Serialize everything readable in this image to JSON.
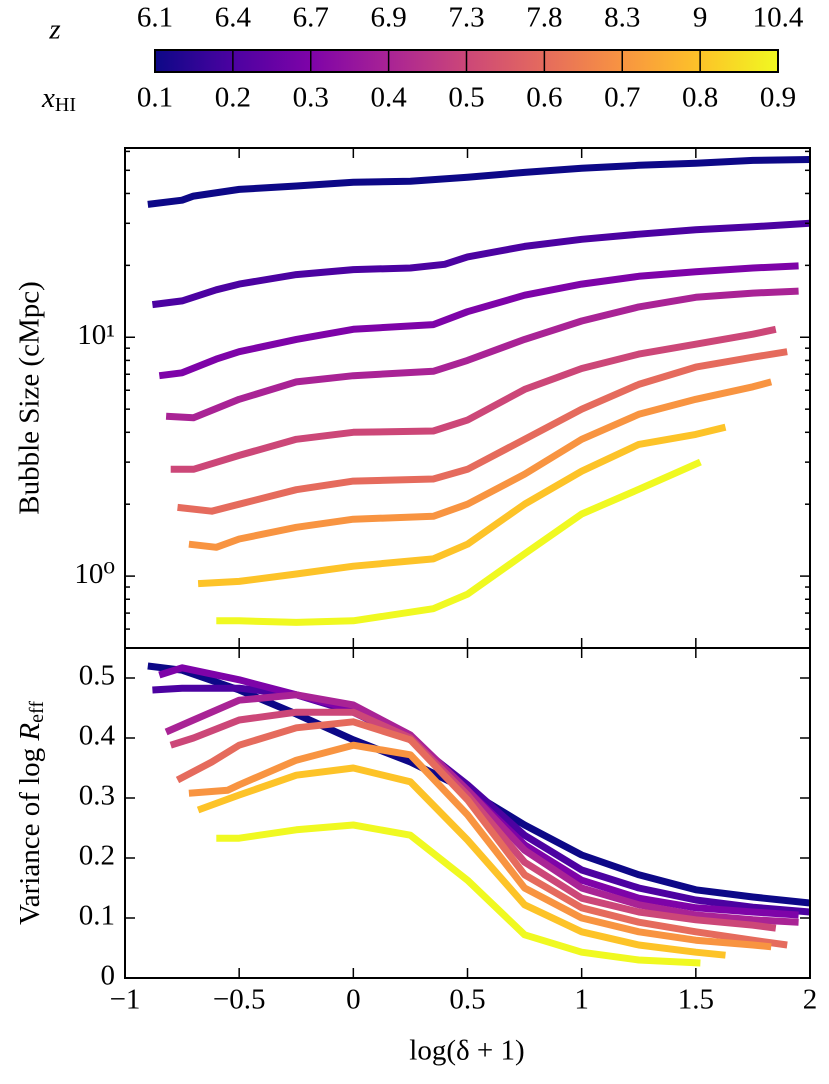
{
  "colorbar": {
    "z_label": "z",
    "z_ticks": [
      6.1,
      6.4,
      6.7,
      6.9,
      7.3,
      7.8,
      8.3,
      9,
      10.4
    ],
    "x_label": "x",
    "x_label_sub": "HI",
    "x_ticks": [
      0.1,
      0.2,
      0.3,
      0.4,
      0.5,
      0.6,
      0.7,
      0.8,
      0.9
    ],
    "lim": [
      0.1,
      0.9
    ]
  },
  "chart_data": [
    {
      "type": "line",
      "ylabel": "Bubble Size (cMpc)",
      "ylog": true,
      "ylim": [
        0.5,
        62
      ],
      "yticks": [
        {
          "value": 1,
          "label": "10⁰"
        },
        {
          "value": 10,
          "label": "10¹"
        }
      ],
      "yminor": [
        0.6,
        0.7,
        0.8,
        0.9,
        2,
        3,
        4,
        5,
        6,
        7,
        8,
        9,
        20,
        30,
        40,
        50,
        60
      ],
      "xlim": [
        -1,
        2
      ],
      "xticks": [
        -1,
        -0.5,
        0,
        0.5,
        1,
        1.5,
        2
      ],
      "show_xtick_labels": false,
      "series": [
        {
          "color": "#0d0887",
          "x": [
            -0.9,
            -0.75,
            -0.7,
            -0.5,
            -0.25,
            0,
            0.25,
            0.5,
            0.75,
            1,
            1.25,
            1.5,
            1.75,
            2
          ],
          "values": [
            36,
            37.5,
            39,
            41.6,
            43,
            44.6,
            45,
            46.8,
            49,
            51,
            52.5,
            53.5,
            55,
            55.5
          ]
        },
        {
          "color": "#4c02a1",
          "x": [
            -0.88,
            -0.75,
            -0.6,
            -0.5,
            -0.25,
            0,
            0.25,
            0.4,
            0.5,
            0.75,
            1,
            1.25,
            1.5,
            1.75,
            2
          ],
          "values": [
            13.7,
            14.2,
            15.8,
            16.7,
            18.3,
            19.2,
            19.5,
            20.2,
            21.7,
            24,
            25.7,
            27,
            28.2,
            29,
            30
          ]
        },
        {
          "color": "#7e03a8",
          "x": [
            -0.85,
            -0.75,
            -0.6,
            -0.5,
            -0.25,
            0,
            0.35,
            0.5,
            0.75,
            1,
            1.25,
            1.5,
            1.75,
            1.95
          ],
          "values": [
            6.9,
            7.1,
            8.1,
            8.7,
            9.8,
            10.8,
            11.3,
            12.8,
            15,
            16.7,
            18,
            18.8,
            19.5,
            19.9
          ]
        },
        {
          "color": "#a92395",
          "x": [
            -0.82,
            -0.7,
            -0.5,
            -0.25,
            0,
            0.35,
            0.5,
            0.75,
            1,
            1.25,
            1.5,
            1.75,
            1.95
          ],
          "values": [
            4.67,
            4.6,
            5.5,
            6.5,
            6.9,
            7.2,
            8,
            9.8,
            11.7,
            13.4,
            14.7,
            15.3,
            15.6
          ]
        },
        {
          "color": "#cc4778",
          "x": [
            -0.8,
            -0.7,
            -0.5,
            -0.25,
            0,
            0.35,
            0.5,
            0.75,
            1,
            1.25,
            1.5,
            1.75,
            1.85
          ],
          "values": [
            2.8,
            2.8,
            3.2,
            3.74,
            4.0,
            4.05,
            4.5,
            6.05,
            7.4,
            8.5,
            9.35,
            10.3,
            10.8
          ]
        },
        {
          "color": "#e56b5d",
          "x": [
            -0.77,
            -0.62,
            -0.5,
            -0.25,
            0,
            0.35,
            0.5,
            0.75,
            1,
            1.25,
            1.5,
            1.75,
            1.9
          ],
          "values": [
            1.94,
            1.87,
            2.0,
            2.3,
            2.5,
            2.55,
            2.8,
            3.74,
            5.0,
            6.35,
            7.5,
            8.25,
            8.7
          ]
        },
        {
          "color": "#f89441",
          "x": [
            -0.72,
            -0.6,
            -0.5,
            -0.25,
            0,
            0.35,
            0.5,
            0.75,
            1,
            1.25,
            1.5,
            1.75,
            1.83
          ],
          "values": [
            1.36,
            1.32,
            1.43,
            1.6,
            1.73,
            1.78,
            2.0,
            2.67,
            3.74,
            4.76,
            5.5,
            6.2,
            6.5
          ]
        },
        {
          "color": "#fdc328",
          "x": [
            -0.68,
            -0.5,
            -0.25,
            0,
            0.35,
            0.5,
            0.75,
            1,
            1.25,
            1.5,
            1.63
          ],
          "values": [
            0.93,
            0.95,
            1.02,
            1.1,
            1.18,
            1.36,
            2.0,
            2.75,
            3.56,
            3.92,
            4.2
          ]
        },
        {
          "color": "#f0f921",
          "x": [
            -0.6,
            -0.5,
            -0.25,
            0,
            0.35,
            0.5,
            0.75,
            1,
            1.25,
            1.52
          ],
          "values": [
            0.65,
            0.65,
            0.64,
            0.65,
            0.73,
            0.84,
            1.24,
            1.82,
            2.31,
            3.0
          ]
        }
      ]
    },
    {
      "type": "line",
      "ylabel": "Variance of log",
      "ylabel_var": "R",
      "ylabel_sub": "eff",
      "xlabel": "log(δ + 1)",
      "ylim": [
        0,
        0.55
      ],
      "yticks": [
        0,
        0.1,
        0.2,
        0.3,
        0.4,
        0.5
      ],
      "xlim": [
        -1,
        2
      ],
      "xticks": [
        {
          "value": -1,
          "label": "−1"
        },
        {
          "value": -0.5,
          "label": "−0.5"
        },
        0,
        0.5,
        1,
        1.5,
        2
      ],
      "series": [
        {
          "color": "#0d0887",
          "x": [
            -0.9,
            -0.75,
            -0.5,
            -0.25,
            0,
            0.25,
            0.5,
            0.75,
            1,
            1.25,
            1.5,
            1.75,
            2
          ],
          "values": [
            0.52,
            0.513,
            0.48,
            0.44,
            0.397,
            0.36,
            0.313,
            0.255,
            0.205,
            0.172,
            0.147,
            0.135,
            0.125
          ]
        },
        {
          "color": "#4c02a1",
          "x": [
            -0.88,
            -0.75,
            -0.5,
            -0.25,
            0,
            0.25,
            0.5,
            0.75,
            1,
            1.25,
            1.5,
            1.75,
            2
          ],
          "values": [
            0.48,
            0.483,
            0.483,
            0.472,
            0.443,
            0.397,
            0.322,
            0.238,
            0.18,
            0.15,
            0.13,
            0.118,
            0.11
          ]
        },
        {
          "color": "#7e03a8",
          "x": [
            -0.85,
            -0.75,
            -0.5,
            -0.25,
            0,
            0.25,
            0.5,
            0.75,
            1,
            1.25,
            1.5,
            1.75,
            1.95
          ],
          "values": [
            0.505,
            0.517,
            0.497,
            0.472,
            0.447,
            0.397,
            0.313,
            0.222,
            0.163,
            0.133,
            0.117,
            0.11,
            0.105
          ]
        },
        {
          "color": "#a92395",
          "x": [
            -0.82,
            -0.7,
            -0.5,
            -0.25,
            0,
            0.25,
            0.5,
            0.75,
            1,
            1.25,
            1.5,
            1.75,
            1.95
          ],
          "values": [
            0.41,
            0.43,
            0.463,
            0.472,
            0.455,
            0.405,
            0.313,
            0.213,
            0.15,
            0.122,
            0.105,
            0.097,
            0.093
          ]
        },
        {
          "color": "#cc4778",
          "x": [
            -0.8,
            -0.7,
            -0.5,
            -0.25,
            0,
            0.25,
            0.5,
            0.75,
            1,
            1.25,
            1.5,
            1.75,
            1.85
          ],
          "values": [
            0.388,
            0.4,
            0.43,
            0.443,
            0.443,
            0.4,
            0.305,
            0.193,
            0.133,
            0.11,
            0.097,
            0.088,
            0.083
          ]
        },
        {
          "color": "#e56b5d",
          "x": [
            -0.77,
            -0.62,
            -0.5,
            -0.25,
            0,
            0.25,
            0.5,
            0.75,
            1,
            1.25,
            1.5,
            1.75,
            1.9
          ],
          "values": [
            0.33,
            0.36,
            0.388,
            0.417,
            0.427,
            0.397,
            0.297,
            0.172,
            0.117,
            0.093,
            0.077,
            0.063,
            0.055
          ]
        },
        {
          "color": "#f89441",
          "x": [
            -0.72,
            -0.55,
            -0.5,
            -0.25,
            0,
            0.25,
            0.5,
            0.75,
            1,
            1.25,
            1.5,
            1.75,
            1.83
          ],
          "values": [
            0.308,
            0.313,
            0.322,
            0.363,
            0.388,
            0.372,
            0.272,
            0.15,
            0.1,
            0.077,
            0.063,
            0.055,
            0.052
          ]
        },
        {
          "color": "#fdc328",
          "x": [
            -0.68,
            -0.5,
            -0.25,
            0,
            0.25,
            0.5,
            0.75,
            1,
            1.25,
            1.5,
            1.63
          ],
          "values": [
            0.28,
            0.305,
            0.338,
            0.35,
            0.327,
            0.23,
            0.122,
            0.077,
            0.055,
            0.043,
            0.038
          ]
        },
        {
          "color": "#f0f921",
          "x": [
            -0.6,
            -0.5,
            -0.25,
            0,
            0.25,
            0.5,
            0.75,
            1,
            1.25,
            1.52
          ],
          "values": [
            0.233,
            0.233,
            0.247,
            0.255,
            0.238,
            0.163,
            0.072,
            0.043,
            0.03,
            0.025
          ]
        }
      ]
    }
  ]
}
